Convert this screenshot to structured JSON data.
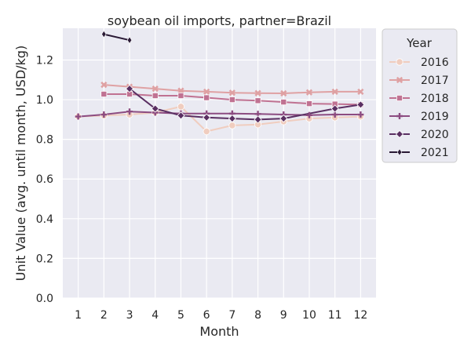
{
  "chart_data": {
    "type": "line",
    "title": "soybean oil imports, partner=Brazil",
    "xlabel": "Month",
    "ylabel": "Unit Value (avg. until month, USD/kg)",
    "x_ticks": [
      1,
      2,
      3,
      4,
      5,
      6,
      7,
      8,
      9,
      10,
      11,
      12
    ],
    "y_ticks": [
      "0.0",
      "0.2",
      "0.4",
      "0.6",
      "0.8",
      "1.0",
      "1.2"
    ],
    "xlim": [
      0.4,
      12.6
    ],
    "ylim": [
      0,
      1.36
    ],
    "grid": true,
    "legend": {
      "title": "Year",
      "position": "outside-right"
    },
    "series": [
      {
        "name": "2016",
        "color": "#f0cdbf",
        "marker": "circle",
        "x": [
          1,
          2,
          3,
          4,
          5,
          6,
          7,
          8,
          9,
          10,
          11,
          12
        ],
        "y": [
          0.915,
          0.92,
          0.925,
          0.935,
          0.965,
          0.84,
          0.87,
          0.875,
          0.89,
          0.905,
          0.91,
          0.915
        ]
      },
      {
        "name": "2017",
        "color": "#dfa1a3",
        "marker": "x",
        "x": [
          2,
          3,
          4,
          5,
          6,
          7,
          8,
          9,
          10,
          11,
          12
        ],
        "y": [
          1.075,
          1.065,
          1.055,
          1.045,
          1.04,
          1.035,
          1.033,
          1.032,
          1.037,
          1.04,
          1.04
        ]
      },
      {
        "name": "2018",
        "color": "#c07292",
        "marker": "square",
        "x": [
          2,
          3,
          4,
          5,
          6,
          7,
          8,
          9,
          10,
          11,
          12
        ],
        "y": [
          1.028,
          1.028,
          1.02,
          1.02,
          1.01,
          1.0,
          0.995,
          0.988,
          0.98,
          0.978,
          0.975
        ]
      },
      {
        "name": "2019",
        "color": "#8c4c81",
        "marker": "plus",
        "x": [
          1,
          2,
          3,
          4,
          5,
          6,
          7,
          8,
          9,
          10,
          11,
          12
        ],
        "y": [
          0.915,
          0.925,
          0.94,
          0.935,
          0.93,
          0.93,
          0.93,
          0.928,
          0.925,
          0.922,
          0.925,
          0.925
        ]
      },
      {
        "name": "2020",
        "color": "#5a2f62",
        "marker": "diamond",
        "x": [
          3,
          4,
          5,
          6,
          7,
          8,
          9,
          11,
          12
        ],
        "y": [
          1.055,
          0.955,
          0.92,
          0.91,
          0.905,
          0.9,
          0.905,
          0.955,
          0.975
        ]
      },
      {
        "name": "2021",
        "color": "#2a1a35",
        "marker": "thin_diamond",
        "x": [
          2,
          3
        ],
        "y": [
          1.33,
          1.3
        ]
      }
    ]
  }
}
